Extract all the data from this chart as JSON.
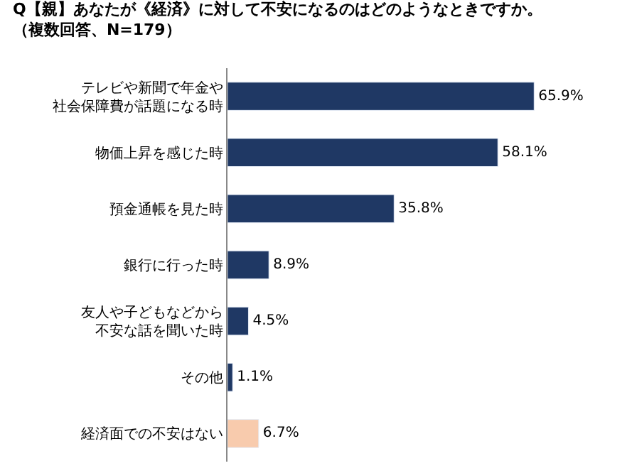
{
  "chart_data": {
    "type": "bar",
    "orientation": "horizontal",
    "title": "Q【親】あなたが《経済》に対して不安になるのはどのようなときですか。",
    "subtitle": "（複数回答、N=179）",
    "categories": [
      "テレビや新聞で年金や社会保障費が話題になる時",
      "物価上昇を感じた時",
      "預金通帳を見た時",
      "銀行に行った時",
      "友人や子どもなどから不安な話を聞いた時",
      "その他",
      "経済面での不安はない"
    ],
    "values": [
      65.9,
      58.1,
      35.8,
      8.9,
      4.5,
      1.1,
      6.7
    ],
    "colors": [
      "#1f3864",
      "#1f3864",
      "#1f3864",
      "#1f3864",
      "#1f3864",
      "#1f3864",
      "#f8cbad"
    ],
    "value_labels": [
      "65.9%",
      "58.1%",
      "35.8%",
      "8.9%",
      "4.5%",
      "1.1%",
      "6.7%"
    ]
  }
}
